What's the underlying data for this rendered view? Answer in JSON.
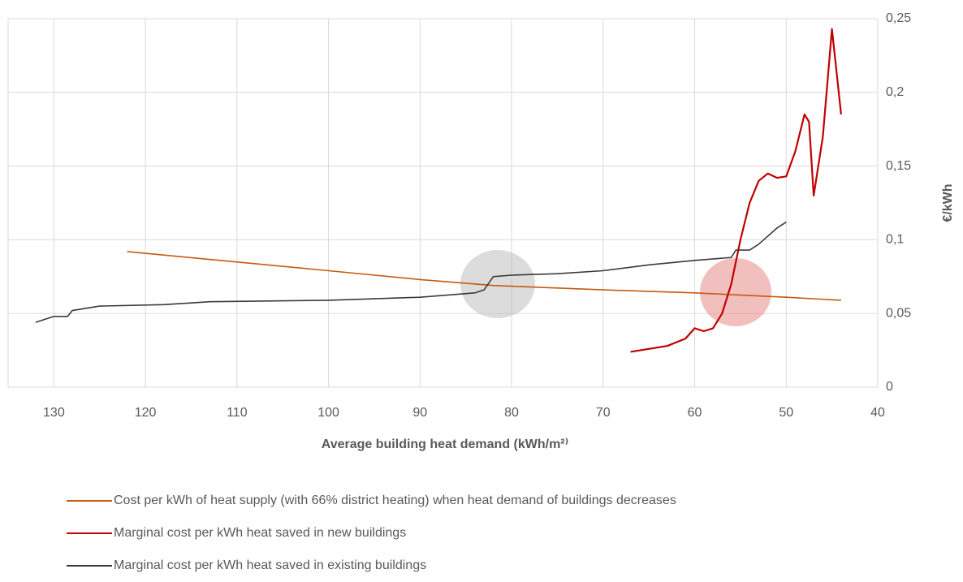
{
  "chart_data": {
    "type": "line",
    "x_label": "Average building heat demand (kWh/m²⁾",
    "y_label": "€/kWh",
    "xlim": [
      135,
      40
    ],
    "xticks": [
      130,
      120,
      110,
      100,
      90,
      80,
      70,
      60,
      50,
      40
    ],
    "ylim": [
      0,
      0.25
    ],
    "yticks": [
      0,
      {
        "value": 0.05,
        "label": "0,05"
      },
      {
        "value": 0.1,
        "label": "0,1"
      },
      {
        "value": 0.15,
        "label": "0,15"
      },
      {
        "value": 0.2,
        "label": "0,2"
      },
      {
        "value": 0.25,
        "label": "0,25"
      }
    ],
    "grid": true,
    "legend": "bottom",
    "series": [
      {
        "name": "Cost per kWh of heat supply (with 66% district heating) when heat demand of buildings decreases",
        "color": "#c55a11",
        "x": [
          122,
          100,
          90,
          82,
          70,
          60,
          50,
          44
        ],
        "values": [
          0.092,
          0.079,
          0.073,
          0.069,
          0.066,
          0.064,
          0.061,
          0.059
        ]
      },
      {
        "name": "Marginal cost per kWh heat saved in new buildings",
        "color": "#c00000",
        "x": [
          67,
          63,
          61,
          60,
          59,
          58,
          57,
          56,
          55,
          54,
          53,
          52,
          51,
          50,
          49,
          48,
          47.5,
          47,
          46,
          45,
          44
        ],
        "values": [
          0.024,
          0.028,
          0.033,
          0.04,
          0.038,
          0.04,
          0.05,
          0.07,
          0.1,
          0.125,
          0.14,
          0.145,
          0.142,
          0.143,
          0.16,
          0.185,
          0.18,
          0.13,
          0.17,
          0.243,
          0.185
        ]
      },
      {
        "name": "Marginal cost per kWh heat saved in existing buildings",
        "color": "#3a3a3a",
        "x": [
          132,
          130,
          128.5,
          128,
          125,
          118,
          113,
          100,
          90,
          84,
          83,
          82,
          80,
          75,
          70,
          65,
          60,
          56,
          55.5,
          54,
          53,
          51,
          50
        ],
        "values": [
          0.044,
          0.048,
          0.048,
          0.052,
          0.055,
          0.056,
          0.058,
          0.059,
          0.061,
          0.064,
          0.066,
          0.075,
          0.076,
          0.077,
          0.079,
          0.083,
          0.086,
          0.088,
          0.093,
          0.093,
          0.097,
          0.108,
          0.112
        ]
      }
    ]
  }
}
